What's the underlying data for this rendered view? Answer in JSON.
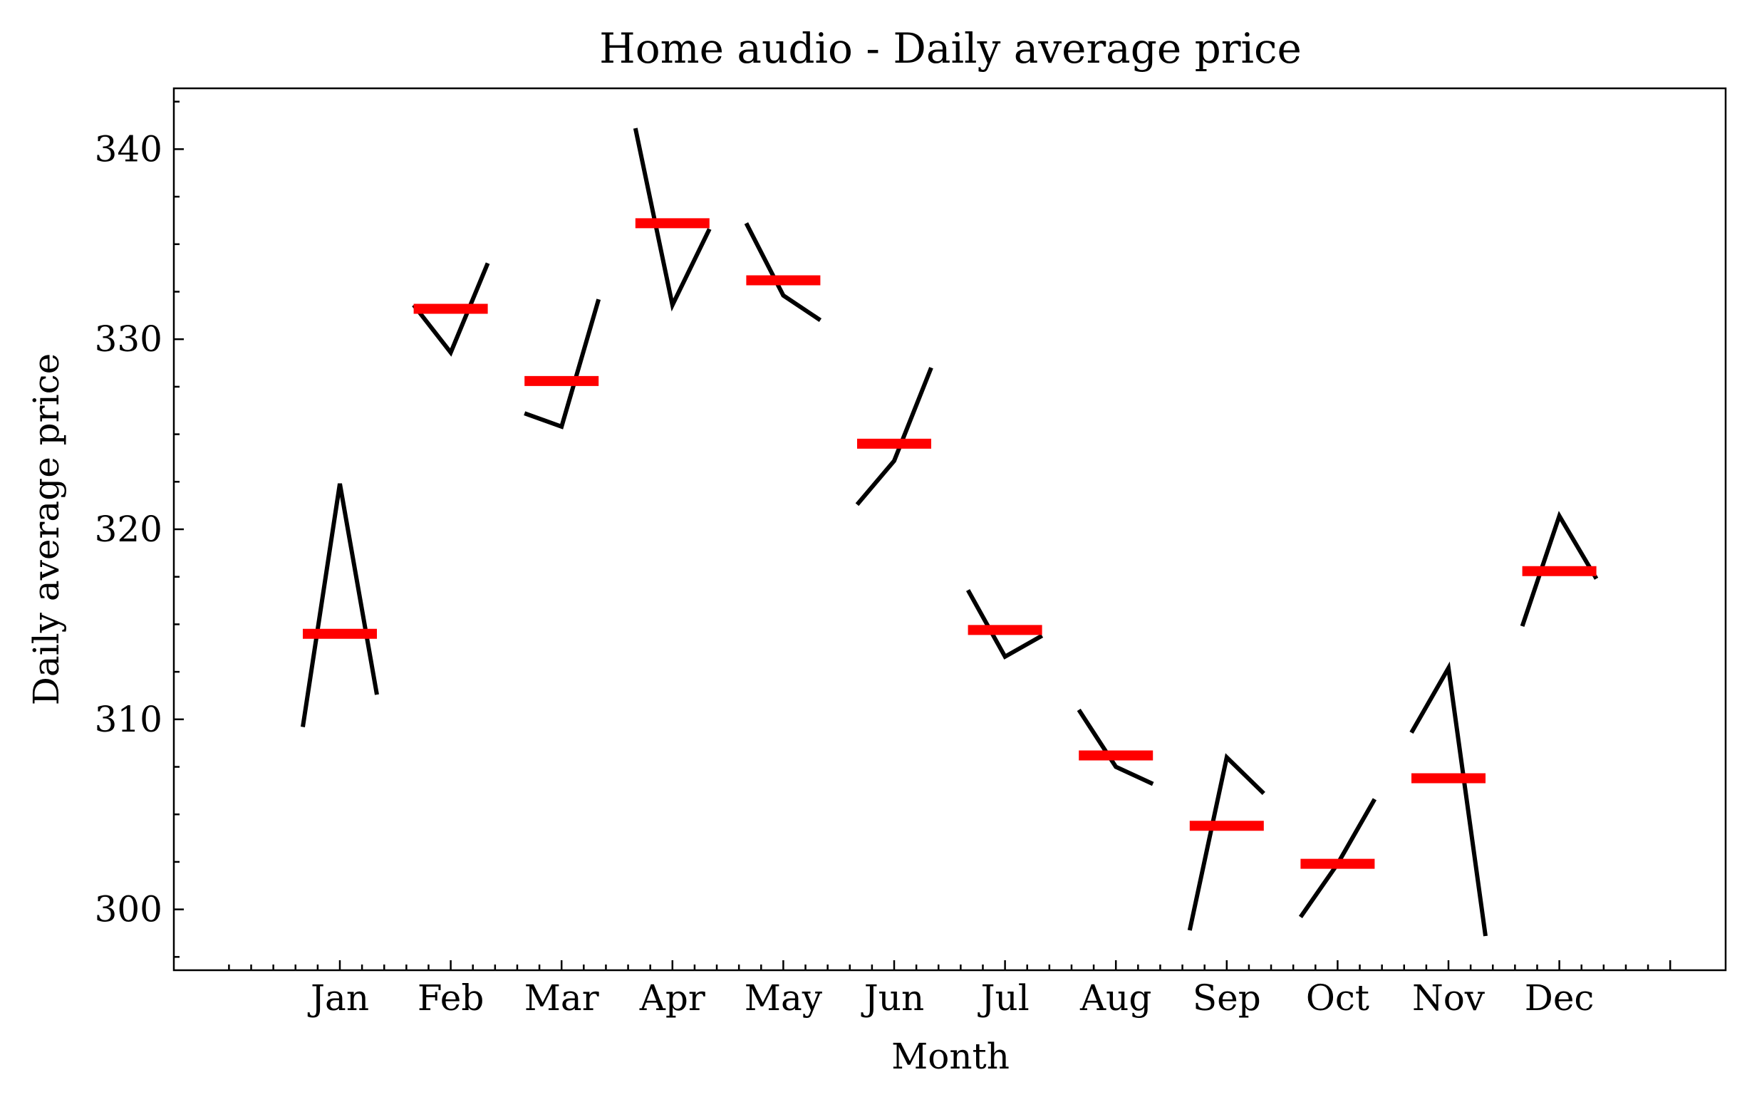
{
  "chart_data": {
    "type": "line",
    "title": "Home audio - Daily average price",
    "xlabel": "Month",
    "ylabel": "Daily average price",
    "ylim": [
      296.8,
      343.2
    ],
    "yticks": [
      300,
      310,
      320,
      330,
      340
    ],
    "grid": false,
    "categories": [
      "Jan",
      "Feb",
      "Mar",
      "Apr",
      "May",
      "Jun",
      "Jul",
      "Aug",
      "Sep",
      "Oct",
      "Nov",
      "Dec"
    ],
    "subseries": [
      [
        309.6,
        322.4,
        311.3
      ],
      [
        331.8,
        329.3,
        334.0
      ],
      [
        326.1,
        325.4,
        332.1
      ],
      [
        341.1,
        331.8,
        335.8
      ],
      [
        336.1,
        332.3,
        331.0
      ],
      [
        321.3,
        323.6,
        328.5
      ],
      [
        316.8,
        313.3,
        314.4
      ],
      [
        310.5,
        307.5,
        306.6
      ],
      [
        298.9,
        308.0,
        306.1
      ],
      [
        299.6,
        302.4,
        305.8
      ],
      [
        309.3,
        312.7,
        298.6
      ],
      [
        314.9,
        320.7,
        317.4
      ]
    ],
    "means": [
      314.5,
      331.6,
      327.8,
      336.1,
      333.1,
      324.5,
      314.7,
      308.1,
      304.4,
      302.4,
      306.9,
      317.8
    ]
  }
}
